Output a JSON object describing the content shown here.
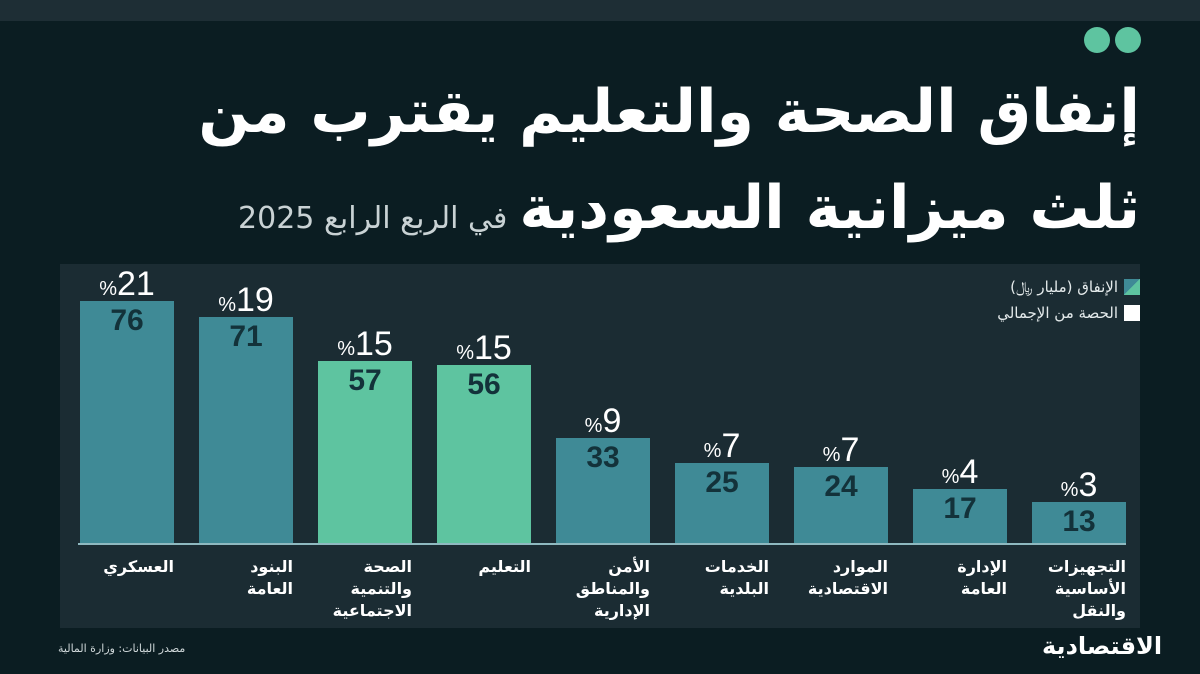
{
  "header": {
    "title_line1": "إنفاق الصحة والتعليم يقترب من",
    "title_line2": "ثلث ميزانية السعودية",
    "subtitle": "في الربع الرابع 2025"
  },
  "legend": {
    "spending": "الإنفاق (مليار ﷼)",
    "share": "الحصة من الإجمالي"
  },
  "colors": {
    "teal_bar": "#3f8a96",
    "green_bar": "#5ec4a0",
    "background": "#0b1d22",
    "panel": "#1b2c33",
    "accent_dots": "#5ec4a0"
  },
  "bars": [
    {
      "label": "العسكري",
      "value": "76",
      "pct": "21",
      "color": "#3f8a96"
    },
    {
      "label": "البنود\nالعامة",
      "value": "71",
      "pct": "19",
      "color": "#3f8a96"
    },
    {
      "label": "الصحة\nوالتنمية\nالاجتماعية",
      "value": "57",
      "pct": "15",
      "color": "#5ec4a0"
    },
    {
      "label": "التعليم",
      "value": "56",
      "pct": "15",
      "color": "#5ec4a0"
    },
    {
      "label": "الأمن\nوالمناطق\nالإدارية",
      "value": "33",
      "pct": "9",
      "color": "#3f8a96"
    },
    {
      "label": "الخدمات\nالبلدية",
      "value": "25",
      "pct": "7",
      "color": "#3f8a96"
    },
    {
      "label": "الموارد\nالاقتصادية",
      "value": "24",
      "pct": "7",
      "color": "#3f8a96"
    },
    {
      "label": "الإدارة\nالعامة",
      "value": "17",
      "pct": "4",
      "color": "#3f8a96"
    },
    {
      "label": "التجهيزات\nالأساسية\nوالنقل",
      "value": "13",
      "pct": "3",
      "color": "#3f8a96"
    }
  ],
  "pct_sign": "%",
  "footer": {
    "source": "مصدر البيانات: وزارة المالية",
    "brand": "الاقتصادية"
  },
  "chart_data": {
    "type": "bar",
    "title": "إنفاق الصحة والتعليم يقترب من ثلث ميزانية السعودية",
    "subtitle": "في الربع الرابع 2025",
    "categories": [
      "العسكري",
      "البنود العامة",
      "الصحة والتنمية الاجتماعية",
      "التعليم",
      "الأمن والمناطق الإدارية",
      "الخدمات البلدية",
      "الموارد الاقتصادية",
      "الإدارة العامة",
      "التجهيزات الأساسية والنقل"
    ],
    "series": [
      {
        "name": "الإنفاق (مليار ريال)",
        "values": [
          76,
          71,
          57,
          56,
          33,
          25,
          24,
          17,
          13
        ]
      },
      {
        "name": "الحصة من الإجمالي (%)",
        "values": [
          21,
          19,
          15,
          15,
          9,
          7,
          7,
          4,
          3
        ]
      }
    ],
    "highlighted": [
      "الصحة والتنمية الاجتماعية",
      "التعليم"
    ],
    "xlabel": "",
    "ylabel": "",
    "grid": false,
    "legend_position": "top-right",
    "source": "مصدر البيانات: وزارة المالية"
  }
}
